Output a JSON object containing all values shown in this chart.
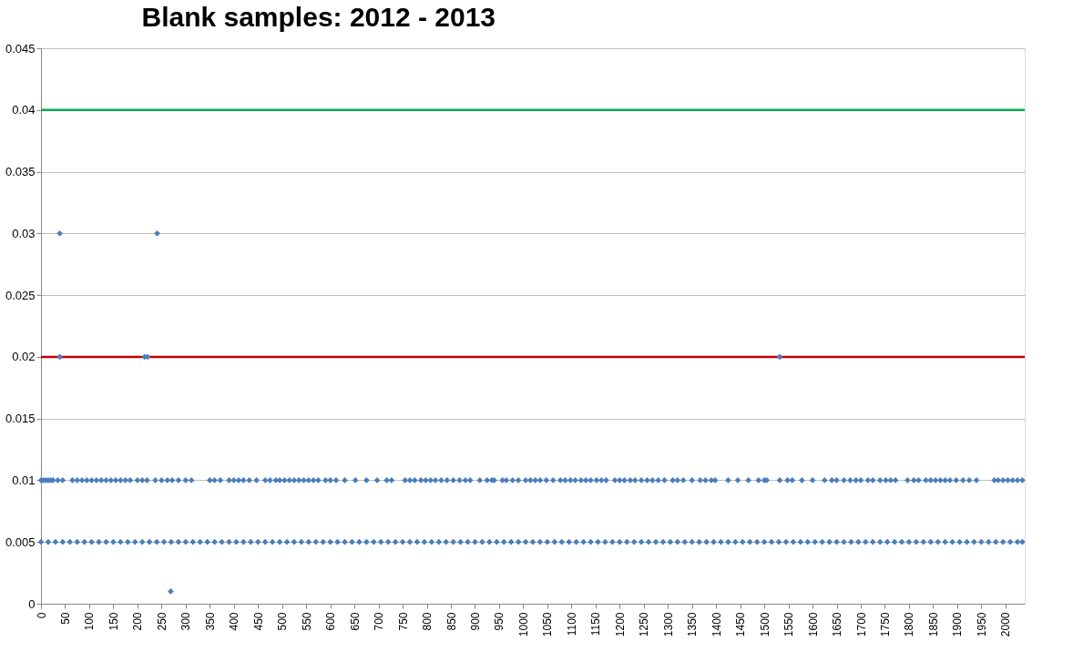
{
  "chart_data": {
    "type": "scatter",
    "title": "Blank samples: 2012 - 2013",
    "xlim": [
      0,
      2040
    ],
    "xticks": [
      0,
      50,
      100,
      150,
      200,
      250,
      300,
      350,
      400,
      450,
      500,
      550,
      600,
      650,
      700,
      750,
      800,
      850,
      900,
      950,
      1000,
      1050,
      1100,
      1150,
      1200,
      1250,
      1300,
      1350,
      1400,
      1450,
      1500,
      1550,
      1600,
      1650,
      1700,
      1750,
      1800,
      1850,
      1900,
      1950,
      2000
    ],
    "ylim": [
      0,
      0.045
    ],
    "yticks": [
      0,
      0.005,
      0.01,
      0.015,
      0.02,
      0.025,
      0.03,
      0.035,
      0.04,
      0.045
    ],
    "grid": "y",
    "marker": "diamond",
    "ref_lines": [
      {
        "axis": "y",
        "value": 0.04,
        "color": "#00b050"
      },
      {
        "axis": "y",
        "value": 0.02,
        "color": "#c00000"
      }
    ],
    "series": [
      {
        "color": "#4a7ebb",
        "x": [
          0,
          15,
          30,
          45,
          60,
          75,
          90,
          105,
          120,
          135,
          150,
          165,
          180,
          195,
          210,
          225,
          240,
          255,
          270,
          285,
          300,
          315,
          330,
          345,
          360,
          375,
          390,
          405,
          420,
          435,
          450,
          465,
          480,
          495,
          510,
          525,
          540,
          555,
          570,
          585,
          600,
          615,
          630,
          645,
          660,
          675,
          690,
          705,
          720,
          735,
          750,
          765,
          780,
          795,
          810,
          825,
          840,
          855,
          870,
          885,
          900,
          915,
          930,
          945,
          960,
          975,
          990,
          1005,
          1020,
          1035,
          1050,
          1065,
          1080,
          1095,
          1110,
          1125,
          1140,
          1155,
          1170,
          1185,
          1200,
          1215,
          1230,
          1245,
          1260,
          1275,
          1290,
          1305,
          1320,
          1335,
          1350,
          1365,
          1380,
          1395,
          1410,
          1425,
          1440,
          1455,
          1470,
          1485,
          1500,
          1515,
          1530,
          1545,
          1560,
          1575,
          1590,
          1605,
          1620,
          1635,
          1650,
          1665,
          1680,
          1695,
          1710,
          1725,
          1740,
          1755,
          1770,
          1785,
          1800,
          1815,
          1830,
          1845,
          1860,
          1875,
          1890,
          1905,
          1920,
          1935,
          1950,
          1965,
          1980,
          1995,
          2010,
          2025,
          2035
        ],
        "values": [
          0.005,
          0.005,
          0.005,
          0.005,
          0.005,
          0.005,
          0.005,
          0.005,
          0.005,
          0.005,
          0.005,
          0.005,
          0.005,
          0.005,
          0.005,
          0.005,
          0.005,
          0.005,
          0.005,
          0.005,
          0.005,
          0.005,
          0.005,
          0.005,
          0.005,
          0.005,
          0.005,
          0.005,
          0.005,
          0.005,
          0.005,
          0.005,
          0.005,
          0.005,
          0.005,
          0.005,
          0.005,
          0.005,
          0.005,
          0.005,
          0.005,
          0.005,
          0.005,
          0.005,
          0.005,
          0.005,
          0.005,
          0.005,
          0.005,
          0.005,
          0.005,
          0.005,
          0.005,
          0.005,
          0.005,
          0.005,
          0.005,
          0.005,
          0.005,
          0.005,
          0.005,
          0.005,
          0.005,
          0.005,
          0.005,
          0.005,
          0.005,
          0.005,
          0.005,
          0.005,
          0.005,
          0.005,
          0.005,
          0.005,
          0.005,
          0.005,
          0.005,
          0.005,
          0.005,
          0.005,
          0.005,
          0.005,
          0.005,
          0.005,
          0.005,
          0.005,
          0.005,
          0.005,
          0.005,
          0.005,
          0.005,
          0.005,
          0.005,
          0.005,
          0.005,
          0.005,
          0.005,
          0.005,
          0.005,
          0.005,
          0.005,
          0.005,
          0.005,
          0.005,
          0.005,
          0.005,
          0.005,
          0.005,
          0.005,
          0.005,
          0.005,
          0.005,
          0.005,
          0.005,
          0.005,
          0.005,
          0.005,
          0.005,
          0.005,
          0.005,
          0.005,
          0.005,
          0.005,
          0.005,
          0.005,
          0.005,
          0.005,
          0.005,
          0.005,
          0.005,
          0.005,
          0.005,
          0.005,
          0.005,
          0.005,
          0.005,
          0.005
        ]
      },
      {
        "color": "#4a7ebb",
        "x": [
          0,
          5,
          10,
          15,
          20,
          25,
          35,
          45,
          65,
          75,
          85,
          95,
          105,
          115,
          125,
          135,
          145,
          155,
          165,
          175,
          185,
          200,
          210,
          220,
          237,
          250,
          262,
          272,
          285,
          300,
          312,
          350,
          360,
          372,
          390,
          400,
          410,
          420,
          432,
          447,
          465,
          475,
          487,
          495,
          505,
          515,
          525,
          535,
          545,
          555,
          565,
          575,
          590,
          600,
          612,
          630,
          652,
          675,
          697,
          717,
          727,
          755,
          765,
          775,
          788,
          798,
          808,
          818,
          830,
          842,
          855,
          868,
          880,
          890,
          910,
          925,
          935,
          940,
          957,
          965,
          978,
          990,
          1005,
          1015,
          1025,
          1035,
          1048,
          1062,
          1077,
          1087,
          1098,
          1108,
          1120,
          1130,
          1140,
          1152,
          1162,
          1172,
          1190,
          1200,
          1210,
          1222,
          1232,
          1245,
          1257,
          1268,
          1280,
          1293,
          1310,
          1320,
          1332,
          1350,
          1367,
          1378,
          1390,
          1398,
          1425,
          1445,
          1467,
          1488,
          1500,
          1505,
          1532,
          1548,
          1558,
          1578,
          1600,
          1625,
          1640,
          1650,
          1665,
          1678,
          1690,
          1700,
          1715,
          1725,
          1740,
          1752,
          1762,
          1772,
          1797,
          1810,
          1820,
          1835,
          1845,
          1855,
          1865,
          1875,
          1885,
          1898,
          1912,
          1925,
          1940,
          1977,
          1985,
          1995,
          2005,
          2015,
          2025,
          2035
        ],
        "values": [
          0.01,
          0.01,
          0.01,
          0.01,
          0.01,
          0.01,
          0.01,
          0.01,
          0.01,
          0.01,
          0.01,
          0.01,
          0.01,
          0.01,
          0.01,
          0.01,
          0.01,
          0.01,
          0.01,
          0.01,
          0.01,
          0.01,
          0.01,
          0.01,
          0.01,
          0.01,
          0.01,
          0.01,
          0.01,
          0.01,
          0.01,
          0.01,
          0.01,
          0.01,
          0.01,
          0.01,
          0.01,
          0.01,
          0.01,
          0.01,
          0.01,
          0.01,
          0.01,
          0.01,
          0.01,
          0.01,
          0.01,
          0.01,
          0.01,
          0.01,
          0.01,
          0.01,
          0.01,
          0.01,
          0.01,
          0.01,
          0.01,
          0.01,
          0.01,
          0.01,
          0.01,
          0.01,
          0.01,
          0.01,
          0.01,
          0.01,
          0.01,
          0.01,
          0.01,
          0.01,
          0.01,
          0.01,
          0.01,
          0.01,
          0.01,
          0.01,
          0.01,
          0.01,
          0.01,
          0.01,
          0.01,
          0.01,
          0.01,
          0.01,
          0.01,
          0.01,
          0.01,
          0.01,
          0.01,
          0.01,
          0.01,
          0.01,
          0.01,
          0.01,
          0.01,
          0.01,
          0.01,
          0.01,
          0.01,
          0.01,
          0.01,
          0.01,
          0.01,
          0.01,
          0.01,
          0.01,
          0.01,
          0.01,
          0.01,
          0.01,
          0.01,
          0.01,
          0.01,
          0.01,
          0.01,
          0.01,
          0.01,
          0.01,
          0.01,
          0.01,
          0.01,
          0.01,
          0.01,
          0.01,
          0.01,
          0.01,
          0.01,
          0.01,
          0.01,
          0.01,
          0.01,
          0.01,
          0.01,
          0.01,
          0.01,
          0.01,
          0.01,
          0.01,
          0.01,
          0.01,
          0.01,
          0.01,
          0.01,
          0.01,
          0.01,
          0.01,
          0.01,
          0.01,
          0.01,
          0.01,
          0.01,
          0.01,
          0.01,
          0.01,
          0.01,
          0.01,
          0.01,
          0.01,
          0.01,
          0.01
        ]
      },
      {
        "color": "#4a7ebb",
        "x": [
          39,
          241,
          39,
          215,
          221,
          1532,
          269
        ],
        "values": [
          0.03,
          0.03,
          0.02,
          0.02,
          0.02,
          0.02,
          0.001
        ]
      }
    ]
  }
}
